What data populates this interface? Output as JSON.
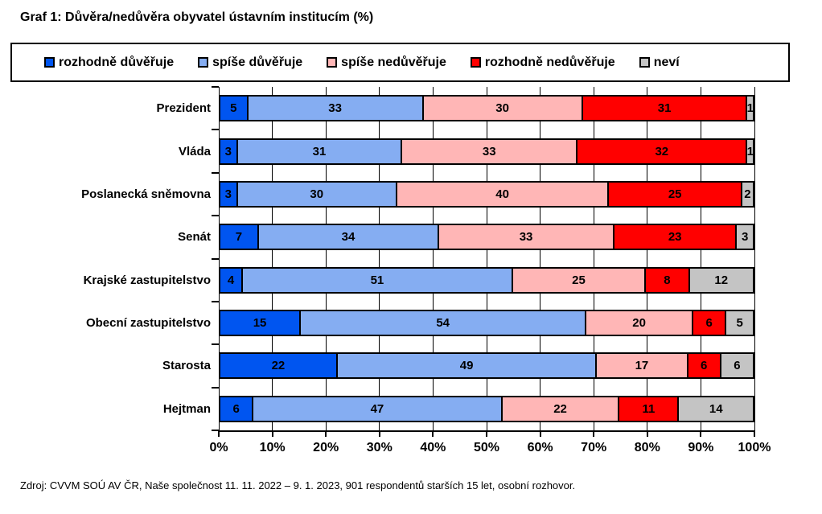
{
  "title": "Graf 1: Důvěra/nedůvěra obyvatel ústavním institucím (%)",
  "source": "Zdroj: CVVM SOÚ AV ČR, Naše společnost 11. 11. 2022 – 9. 1. 2023, 901 respondentů starších 15 let, osobní rozhovor.",
  "colors": {
    "strong_trust": "#0055F0",
    "rather_trust": "#85ADF2",
    "rather_distrust": "#FFB6B6",
    "strong_distrust": "#FF0000",
    "dont_know": "#C4C4C4",
    "border": "#000000",
    "background": "#FFFFFF"
  },
  "chart_data": {
    "type": "bar",
    "stacked": true,
    "orientation": "horizontal",
    "unit": "%",
    "title": "Graf 1: Důvěra/nedůvěra obyvatel ústavním institucím (%)",
    "xlabel": "",
    "ylabel": "",
    "xlim": [
      0,
      100
    ],
    "x_ticks": [
      "0%",
      "10%",
      "20%",
      "30%",
      "40%",
      "50%",
      "60%",
      "70%",
      "80%",
      "90%",
      "100%"
    ],
    "grid": "vertical",
    "legend_position": "top",
    "categories": [
      "Prezident",
      "Vláda",
      "Poslanecká sněmovna",
      "Senát",
      "Krajské zastupitelstvo",
      "Obecní zastupitelstvo",
      "Starosta",
      "Hejtman"
    ],
    "series": [
      {
        "name": "rozhodně důvěřuje",
        "color": "#0055F0",
        "values": [
          5,
          3,
          3,
          7,
          4,
          15,
          22,
          6
        ]
      },
      {
        "name": "spíše důvěřuje",
        "color": "#85ADF2",
        "values": [
          33,
          31,
          30,
          34,
          51,
          54,
          49,
          47
        ]
      },
      {
        "name": "spíše nedůvěřuje",
        "color": "#FFB6B6",
        "values": [
          30,
          33,
          40,
          33,
          25,
          20,
          17,
          22
        ]
      },
      {
        "name": "rozhodně nedůvěřuje",
        "color": "#FF0000",
        "values": [
          31,
          32,
          25,
          23,
          8,
          6,
          6,
          11
        ]
      },
      {
        "name": "neví",
        "color": "#C4C4C4",
        "values": [
          1,
          1,
          2,
          3,
          12,
          5,
          6,
          14
        ]
      }
    ]
  }
}
